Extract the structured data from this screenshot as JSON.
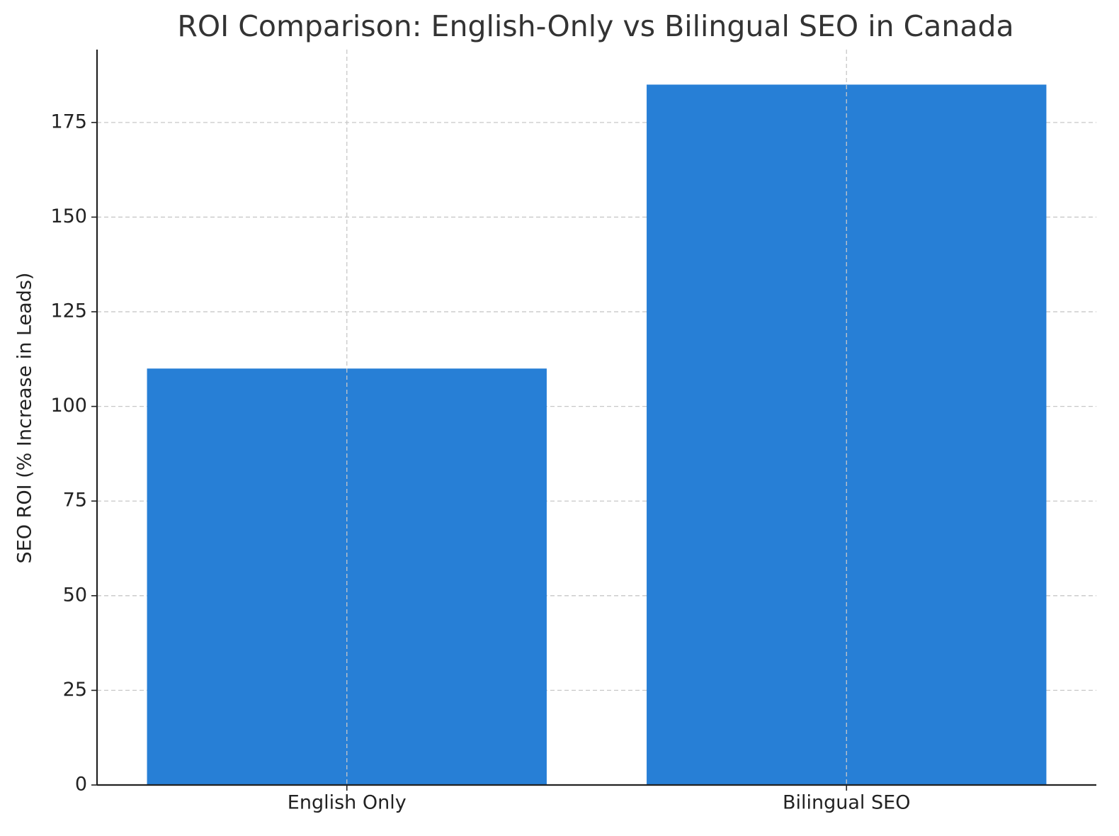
{
  "chart_data": {
    "type": "bar",
    "title": "ROI Comparison: English-Only vs Bilingual SEO in Canada",
    "y_label": "SEO ROI (% Increase in Leads)",
    "categories": [
      "English Only",
      "Bilingual SEO"
    ],
    "values": [
      110,
      185
    ],
    "color": "#277fd6",
    "ylim": [
      0,
      194.25
    ],
    "yticks": [
      0,
      25,
      50,
      75,
      100,
      125,
      150,
      175
    ],
    "grid": true
  }
}
